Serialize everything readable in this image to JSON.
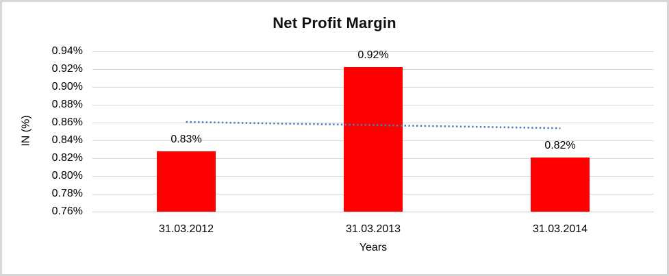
{
  "chart_data": {
    "type": "bar",
    "title": "Net Profit Margin",
    "xlabel": "Years",
    "ylabel": "IN (%)",
    "categories": [
      "31.03.2012",
      "31.03.2013",
      "31.03.2014"
    ],
    "values": [
      0.828,
      0.922,
      0.821
    ],
    "data_labels": [
      "0.83%",
      "0.92%",
      "0.82%"
    ],
    "ylim": [
      0.76,
      0.94
    ],
    "y_tick_step": 0.02,
    "y_tick_labels": [
      "0.94%",
      "0.92%",
      "0.90%",
      "0.88%",
      "0.86%",
      "0.84%",
      "0.82%",
      "0.80%",
      "0.78%",
      "0.76%"
    ],
    "grid": true,
    "legend": "none",
    "bar_color": "#ff0000",
    "gridline_color": "#d9d9d9",
    "text_color": "#000000",
    "trendline": {
      "type": "linear",
      "style": "dotted",
      "color": "#4a7ebb",
      "start_value": 0.8607,
      "end_value": 0.8537
    }
  }
}
